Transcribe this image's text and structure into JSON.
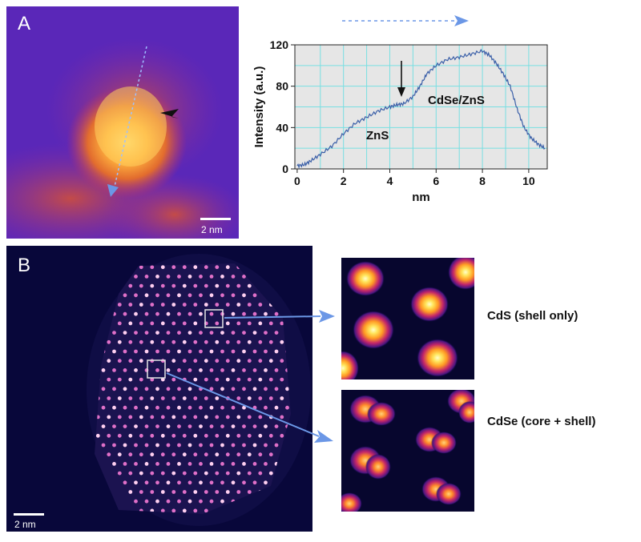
{
  "panels": {
    "a": {
      "letter": "A",
      "scale_bar": "2 nm"
    },
    "b": {
      "letter": "B",
      "scale_bar": "2 nm"
    }
  },
  "chart_data": {
    "type": "line",
    "xlabel": "nm",
    "ylabel": "Intensity (a.u.)",
    "xlim": [
      -0.1,
      10.8
    ],
    "ylim": [
      0,
      120
    ],
    "xticks": [
      0,
      2,
      4,
      6,
      8,
      10
    ],
    "yticks": [
      0,
      40,
      80,
      120
    ],
    "grid": true,
    "series": [
      {
        "x": [
          0,
          0.3,
          0.6,
          1.0,
          1.5,
          2.0,
          2.5,
          3.0,
          3.5,
          4.0,
          4.3,
          4.6,
          5.0,
          5.3,
          5.6,
          6.0,
          6.5,
          7.0,
          7.5,
          8.0,
          8.3,
          8.6,
          8.9,
          9.2,
          9.5,
          9.8,
          10.1,
          10.4,
          10.7
        ],
        "values": [
          3,
          4,
          8,
          14,
          22,
          34,
          44,
          50,
          56,
          60,
          62,
          63,
          70,
          80,
          92,
          100,
          106,
          108,
          111,
          114,
          110,
          102,
          92,
          80,
          58,
          40,
          30,
          24,
          20
        ]
      }
    ],
    "annotations": [
      "ZnS",
      "CdSe/ZnS"
    ]
  },
  "insets": {
    "top_label": "CdS (shell only)",
    "bottom_label": "CdSe (core + shell)"
  },
  "colors": {
    "profile_line": "#3a5fa8",
    "arrow": "#6b97e6",
    "plot_bg": "#e6e6e6",
    "grid": "#78dfe2"
  }
}
